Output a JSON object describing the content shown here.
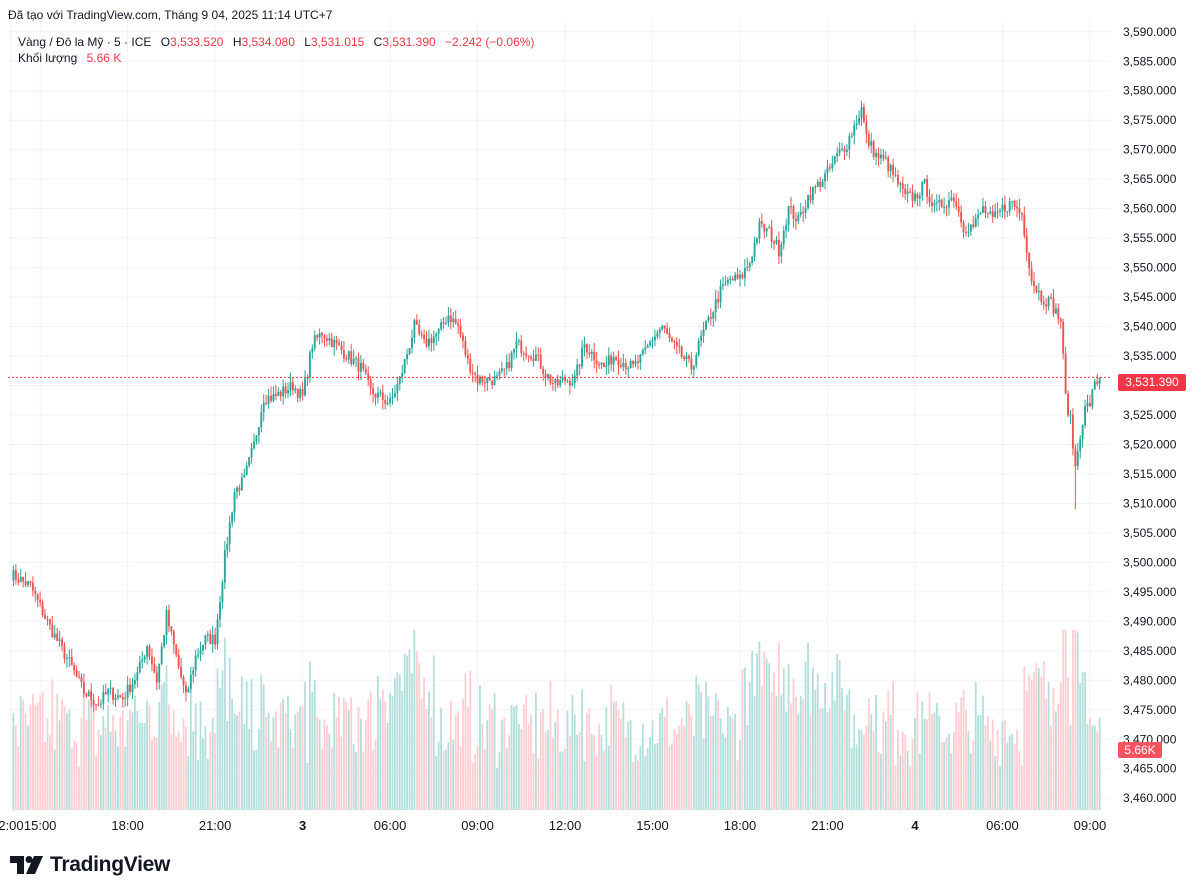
{
  "header": {
    "created_with": "Đã tạo với TradingView.com, Tháng 9 04, 2025 11:14 UTC+7"
  },
  "legend": {
    "symbol": "Vàng / Đô la Mỹ · 5 · ICE",
    "open_label": "O",
    "open": "3,533.520",
    "high_label": "H",
    "high": "3,534.080",
    "low_label": "L",
    "low": "3,531.015",
    "close_label": "C",
    "close": "3,531.390",
    "change": "−2.242 (−0.06%)",
    "volume_label": "Khối lượng",
    "volume": "5.66 K"
  },
  "badges": {
    "last_price": "3,531.390",
    "last_volume": "5.66K"
  },
  "logo": {
    "text": "TradingView"
  },
  "colors": {
    "up": "#26a69a",
    "down": "#ef5350",
    "up_volume": "#b2dfdb",
    "down_volume": "#ffcdd2",
    "grid": "#f0f3fa",
    "price_line": "#f23645"
  },
  "chart_data": {
    "type": "candlestick",
    "y_axis_position": "right",
    "ylim": [
      3458,
      3592
    ],
    "y_ticks": [
      "3,590.000",
      "3,585.000",
      "3,580.000",
      "3,575.000",
      "3,570.000",
      "3,565.000",
      "3,560.000",
      "3,555.000",
      "3,550.000",
      "3,545.000",
      "3,540.000",
      "3,535.000",
      "3,530.000",
      "3,525.000",
      "3,520.000",
      "3,515.000",
      "3,510.000",
      "3,505.000",
      "3,500.000",
      "3,495.000",
      "3,490.000",
      "3,485.000",
      "3,480.000",
      "3,475.000",
      "3,470.000",
      "3,465.000",
      "3,460.000"
    ],
    "x_ticks": [
      {
        "label": "2:00",
        "bar": 0
      },
      {
        "label": "15:00",
        "bar": 12
      },
      {
        "label": "18:00",
        "bar": 48
      },
      {
        "label": "21:00",
        "bar": 84
      },
      {
        "label": "3",
        "bar": 120
      },
      {
        "label": "06:00",
        "bar": 156
      },
      {
        "label": "09:00",
        "bar": 192
      },
      {
        "label": "12:00",
        "bar": 228
      },
      {
        "label": "15:00",
        "bar": 264
      },
      {
        "label": "18:00",
        "bar": 300
      },
      {
        "label": "21:00",
        "bar": 336
      },
      {
        "label": "4",
        "bar": 372
      },
      {
        "label": "06:00",
        "bar": 408
      },
      {
        "label": "09:00",
        "bar": 444
      }
    ],
    "close_keyframes": [
      [
        0,
        3498
      ],
      [
        8,
        3496
      ],
      [
        16,
        3489
      ],
      [
        24,
        3483
      ],
      [
        30,
        3478
      ],
      [
        36,
        3476
      ],
      [
        40,
        3478
      ],
      [
        46,
        3477
      ],
      [
        52,
        3481
      ],
      [
        56,
        3486
      ],
      [
        60,
        3480
      ],
      [
        64,
        3491
      ],
      [
        68,
        3484
      ],
      [
        72,
        3477
      ],
      [
        76,
        3484
      ],
      [
        80,
        3487
      ],
      [
        84,
        3487
      ],
      [
        88,
        3501
      ],
      [
        92,
        3512
      ],
      [
        96,
        3514
      ],
      [
        100,
        3520
      ],
      [
        104,
        3528
      ],
      [
        108,
        3528
      ],
      [
        112,
        3529
      ],
      [
        116,
        3530
      ],
      [
        120,
        3528
      ],
      [
        124,
        3537
      ],
      [
        128,
        3539
      ],
      [
        136,
        3536
      ],
      [
        144,
        3533
      ],
      [
        148,
        3529
      ],
      [
        156,
        3527
      ],
      [
        160,
        3531
      ],
      [
        166,
        3540
      ],
      [
        170,
        3537
      ],
      [
        176,
        3539
      ],
      [
        180,
        3542
      ],
      [
        184,
        3540
      ],
      [
        188,
        3534
      ],
      [
        192,
        3531
      ],
      [
        196,
        3531
      ],
      [
        200,
        3531
      ],
      [
        204,
        3533
      ],
      [
        208,
        3537
      ],
      [
        212,
        3536
      ],
      [
        216,
        3535
      ],
      [
        220,
        3532
      ],
      [
        224,
        3530
      ],
      [
        228,
        3531
      ],
      [
        232,
        3531
      ],
      [
        236,
        3537
      ],
      [
        240,
        3535
      ],
      [
        244,
        3533
      ],
      [
        248,
        3535
      ],
      [
        252,
        3534
      ],
      [
        256,
        3533
      ],
      [
        260,
        3535
      ],
      [
        264,
        3538
      ],
      [
        268,
        3540
      ],
      [
        272,
        3537
      ],
      [
        276,
        3535
      ],
      [
        280,
        3533
      ],
      [
        284,
        3538
      ],
      [
        288,
        3542
      ],
      [
        292,
        3546
      ],
      [
        296,
        3548
      ],
      [
        300,
        3548
      ],
      [
        304,
        3551
      ],
      [
        308,
        3557
      ],
      [
        312,
        3556
      ],
      [
        316,
        3553
      ],
      [
        320,
        3560
      ],
      [
        324,
        3558
      ],
      [
        328,
        3562
      ],
      [
        332,
        3564
      ],
      [
        336,
        3566
      ],
      [
        340,
        3569
      ],
      [
        344,
        3571
      ],
      [
        348,
        3575
      ],
      [
        350,
        3577
      ],
      [
        352,
        3572
      ],
      [
        356,
        3569
      ],
      [
        360,
        3568
      ],
      [
        364,
        3565
      ],
      [
        368,
        3562
      ],
      [
        372,
        3562
      ],
      [
        376,
        3564
      ],
      [
        380,
        3560
      ],
      [
        384,
        3561
      ],
      [
        388,
        3562
      ],
      [
        392,
        3557
      ],
      [
        396,
        3557
      ],
      [
        400,
        3560
      ],
      [
        404,
        3558
      ],
      [
        408,
        3560
      ],
      [
        412,
        3561
      ],
      [
        416,
        3559
      ],
      [
        420,
        3548
      ],
      [
        424,
        3545
      ],
      [
        428,
        3544
      ],
      [
        432,
        3541
      ],
      [
        434,
        3528
      ],
      [
        436,
        3524
      ],
      [
        438,
        3516
      ],
      [
        440,
        3522
      ],
      [
        442,
        3526
      ],
      [
        444,
        3527
      ],
      [
        446,
        3530
      ],
      [
        448,
        3531.39
      ]
    ],
    "volume_range": [
      0,
      35
    ],
    "last_volume": 5.66
  }
}
